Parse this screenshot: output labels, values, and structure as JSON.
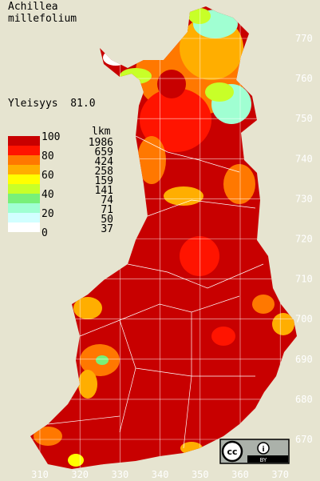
{
  "title": [
    "Achillea",
    "millefolium"
  ],
  "frequency": "Yleisyys  81.0",
  "legend": {
    "scale": [
      "100",
      "80",
      "60",
      "40",
      "20",
      "0"
    ],
    "colors": [
      "#c80000",
      "#ff1400",
      "#ff7800",
      "#ffae00",
      "#ffff00",
      "#c8ff28",
      "#78f078",
      "#a0ffd2",
      "#d2ffff",
      "#ffffff"
    ],
    "count_header": "lkm",
    "counts": [
      "1986",
      "659",
      "424",
      "258",
      "159",
      "141",
      "74",
      "71",
      "50",
      "37"
    ]
  },
  "axes": {
    "y": [
      "770",
      "760",
      "750",
      "740",
      "730",
      "720",
      "710",
      "700",
      "690",
      "680",
      "670"
    ],
    "x": [
      "310",
      "320",
      "330",
      "340",
      "350",
      "360",
      "370"
    ]
  },
  "badge": "BY"
}
